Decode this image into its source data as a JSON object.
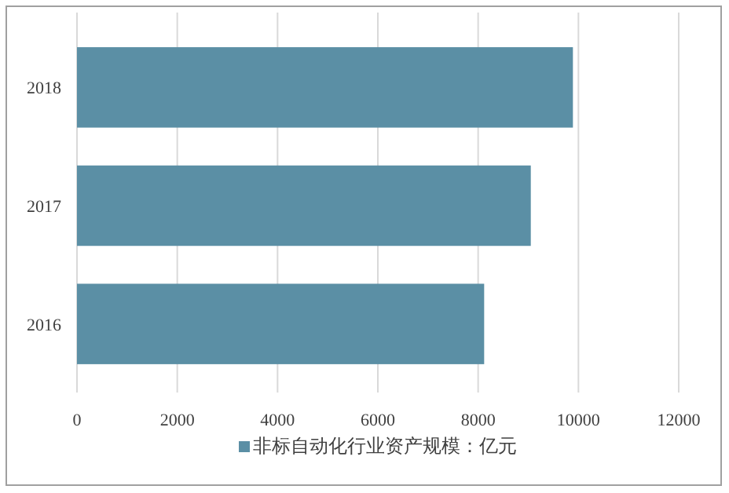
{
  "chart_data": {
    "type": "bar",
    "orientation": "horizontal",
    "categories": [
      "2018",
      "2017",
      "2016"
    ],
    "series": [
      {
        "name": "非标自动化行业资产规模：亿元",
        "color": "#5b8fa5",
        "values": [
          9890,
          9050,
          8120
        ]
      }
    ],
    "xlim": [
      0,
      12000
    ],
    "xticks": [
      0,
      2000,
      4000,
      6000,
      8000,
      10000,
      12000
    ],
    "grid": "x",
    "legend": "bottom"
  }
}
